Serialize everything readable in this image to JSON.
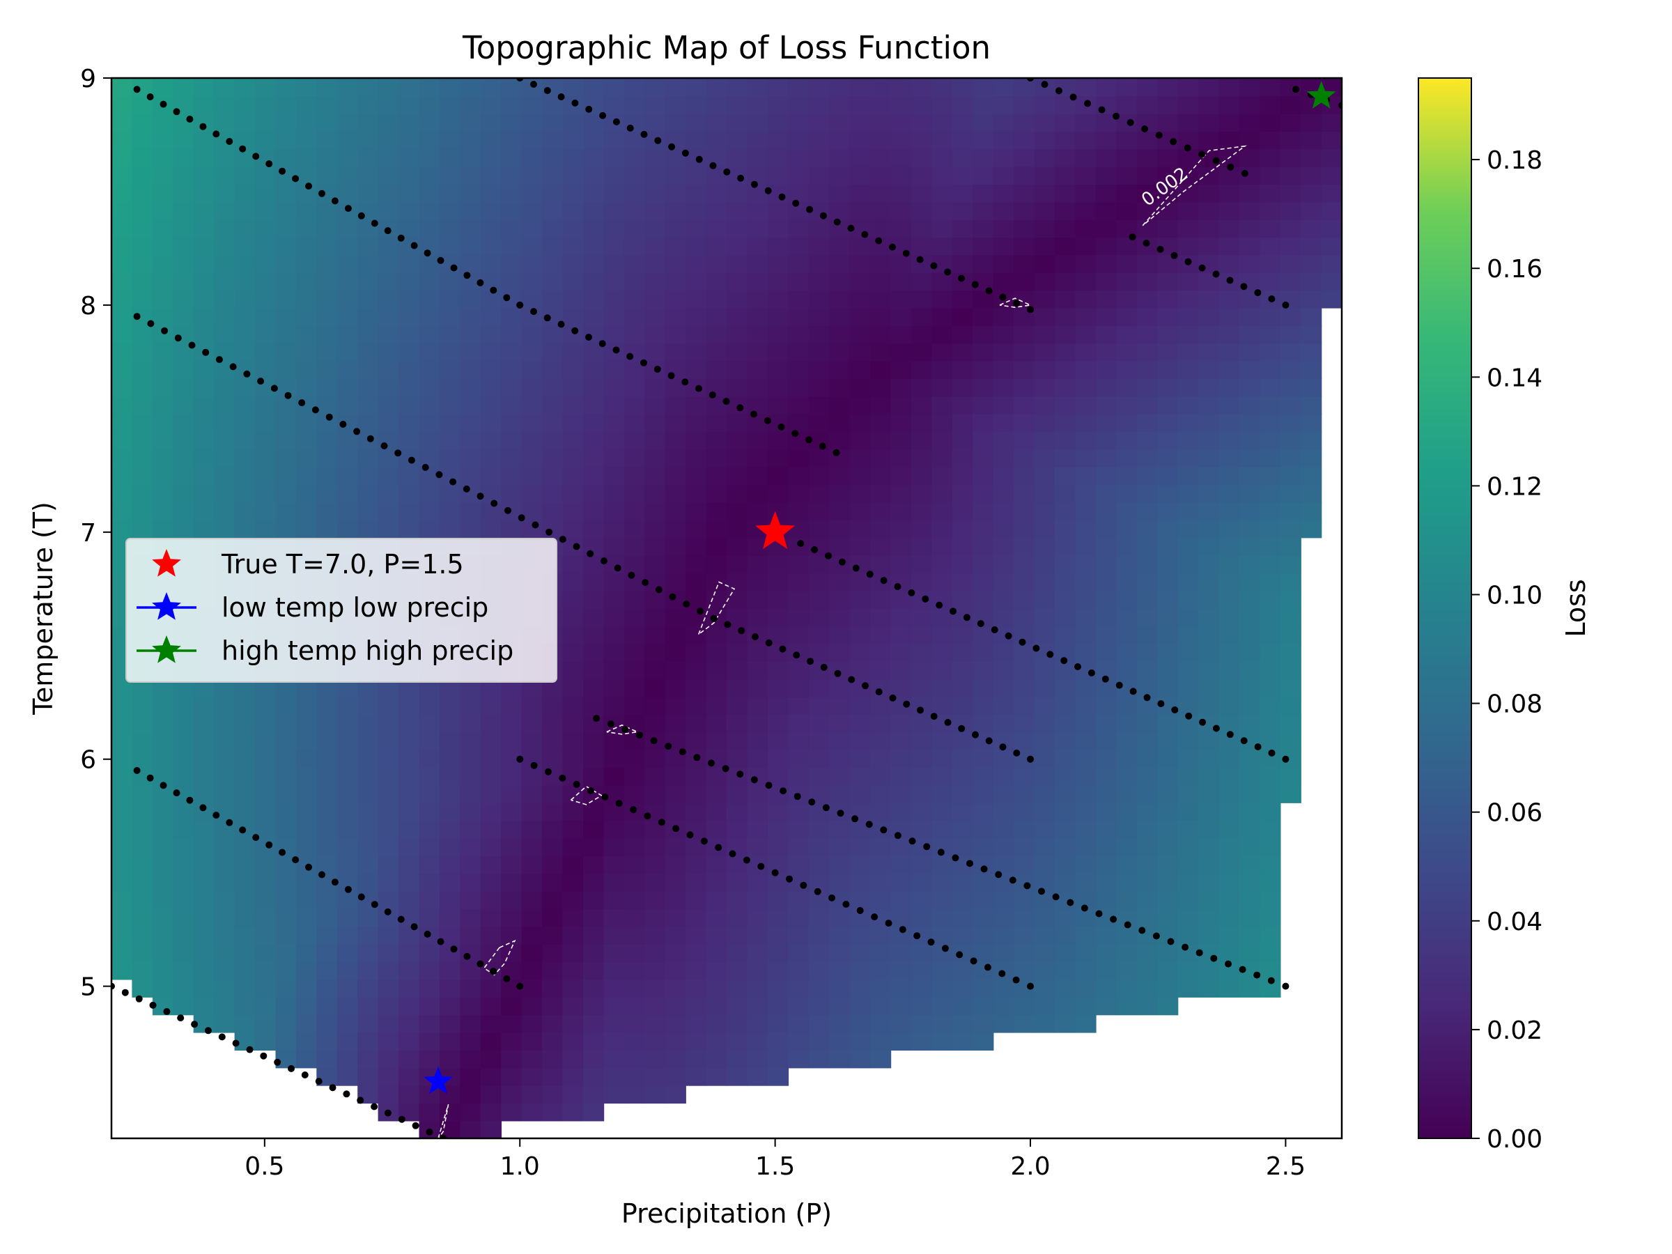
{
  "chart_data": {
    "type": "heatmap",
    "title": "Topographic Map of Loss Function",
    "xlabel": "Precipitation (P)",
    "ylabel": "Temperature (T)",
    "xlim": [
      0.2,
      2.61
    ],
    "ylim": [
      4.33,
      9.0
    ],
    "x_ticks": [
      0.5,
      1.0,
      1.5,
      2.0,
      2.5
    ],
    "y_ticks": [
      5,
      6,
      7,
      8,
      9
    ],
    "x_tick_labels": [
      "0.5",
      "1.0",
      "1.5",
      "2.0",
      "2.5"
    ],
    "y_tick_labels": [
      "5",
      "6",
      "7",
      "8",
      "9"
    ],
    "colormap": "viridis",
    "colorbar": {
      "label": "Loss",
      "range": [
        0.0,
        0.195
      ],
      "ticks": [
        0.0,
        0.02,
        0.04,
        0.06,
        0.08,
        0.1,
        0.12,
        0.14,
        0.16,
        0.18
      ],
      "tick_labels": [
        "0.00",
        "0.02",
        "0.04",
        "0.06",
        "0.08",
        "0.10",
        "0.12",
        "0.14",
        "0.16",
        "0.18"
      ]
    },
    "domain_boundary": {
      "left": [
        [
          0.2,
          9.0
        ],
        [
          0.2,
          5.02
        ]
      ],
      "bottom": [
        [
          0.2,
          5.02
        ],
        [
          0.85,
          4.33
        ],
        [
          1.0,
          4.38
        ],
        [
          1.5,
          4.6
        ],
        [
          2.0,
          4.79
        ],
        [
          2.5,
          5.0
        ]
      ],
      "right": [
        [
          2.5,
          5.0
        ],
        [
          2.5,
          5.45
        ],
        [
          2.53,
          6.5
        ],
        [
          2.56,
          7.2
        ],
        [
          2.59,
          8.0
        ],
        [
          2.61,
          8.5
        ],
        [
          2.61,
          9.0
        ]
      ]
    },
    "valley": {
      "points": [
        [
          0.85,
          4.33
        ],
        [
          1.0,
          5.0
        ],
        [
          1.2,
          6.0
        ],
        [
          1.4,
          7.0
        ],
        [
          1.7,
          7.7
        ],
        [
          2.2,
          8.45
        ],
        [
          2.6,
          9.0
        ]
      ],
      "weights": [
        1.0,
        0.8,
        0.5,
        0.5,
        1.0,
        1.0
      ]
    },
    "iteration_paths": [
      {
        "from": [
          0.25,
          5.95
        ],
        "to": [
          1.0,
          5.0
        ]
      },
      {
        "from": [
          0.25,
          7.95
        ],
        "to": [
          1.38,
          6.62
        ]
      },
      {
        "from": [
          1.38,
          6.62
        ],
        "to": [
          2.0,
          6.0
        ]
      },
      {
        "from": [
          0.25,
          8.95
        ],
        "to": [
          1.0,
          8.0
        ]
      },
      {
        "from": [
          1.0,
          8.0
        ],
        "to": [
          1.62,
          7.35
        ]
      },
      {
        "from": [
          1.0,
          9.0
        ],
        "to": [
          2.0,
          7.98
        ]
      },
      {
        "from": [
          2.0,
          9.0
        ],
        "to": [
          2.42,
          8.58
        ]
      },
      {
        "from": [
          2.2,
          8.3
        ],
        "to": [
          2.5,
          8.0
        ]
      },
      {
        "from": [
          1.55,
          6.95
        ],
        "to": [
          2.5,
          6.0
        ]
      },
      {
        "from": [
          1.0,
          6.0
        ],
        "to": [
          2.0,
          5.0
        ]
      },
      {
        "from": [
          1.15,
          6.18
        ],
        "to": [
          2.5,
          5.0
        ]
      },
      {
        "from": [
          0.2,
          5.0
        ],
        "to": [
          0.85,
          4.33
        ]
      },
      {
        "from": [
          2.52,
          8.95
        ],
        "to": [
          2.61,
          8.88
        ]
      }
    ],
    "contour_level": 0.002,
    "contour_label": "0.002",
    "markers": [
      {
        "label": "True T=7.0, P=1.5",
        "x": 1.5,
        "y": 7.0,
        "color": "#ff0000",
        "marker": "star"
      },
      {
        "label": "low temp low precip",
        "x": 0.84,
        "y": 4.58,
        "color": "#0000ff",
        "marker": "star"
      },
      {
        "label": "high temp high precip",
        "x": 2.57,
        "y": 8.92,
        "color": "#008000",
        "marker": "star"
      }
    ],
    "legend_position": "center-left",
    "grid": false
  }
}
